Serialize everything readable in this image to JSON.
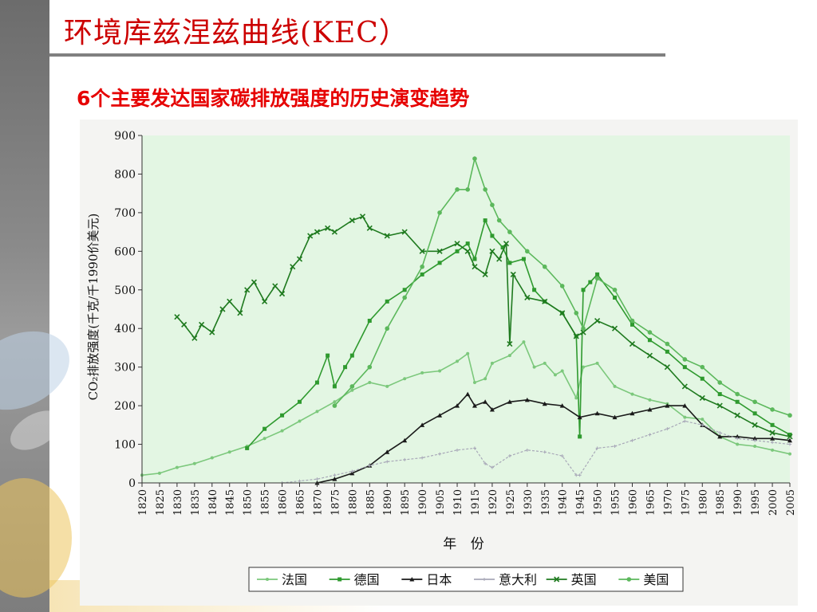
{
  "slide": {
    "title": "环境库兹涅兹曲线(KEC）",
    "subtitle": "6个主要发达国家碳排放强度的历史演变趋势"
  },
  "chart_data": {
    "type": "line",
    "xlabel": "年 份",
    "ylabel": "CO₂排放强度(千克/千1990价美元)",
    "xlim": [
      1820,
      2005
    ],
    "ylim": [
      0,
      900
    ],
    "x_ticks": [
      1820,
      1825,
      1830,
      1835,
      1840,
      1845,
      1850,
      1855,
      1860,
      1865,
      1870,
      1875,
      1880,
      1885,
      1890,
      1895,
      1900,
      1905,
      1910,
      1915,
      1920,
      1925,
      1930,
      1935,
      1940,
      1945,
      1950,
      1955,
      1960,
      1965,
      1970,
      1975,
      1980,
      1985,
      1990,
      1995,
      2000,
      2005
    ],
    "y_ticks": [
      0,
      100,
      200,
      300,
      400,
      500,
      600,
      700,
      800,
      900
    ],
    "plot_background": "#e3f6e3",
    "grid": false,
    "legend_position": "bottom",
    "series": [
      {
        "name": "法国",
        "color": "#7cc87c",
        "marker": "circle-small",
        "x": [
          1820,
          1825,
          1830,
          1835,
          1840,
          1845,
          1850,
          1855,
          1860,
          1865,
          1870,
          1875,
          1880,
          1885,
          1890,
          1895,
          1900,
          1905,
          1910,
          1913,
          1915,
          1918,
          1920,
          1925,
          1929,
          1932,
          1935,
          1938,
          1940,
          1944,
          1946,
          1950,
          1955,
          1960,
          1965,
          1970,
          1975,
          1980,
          1985,
          1990,
          1995,
          2000,
          2005
        ],
        "y": [
          20,
          25,
          40,
          50,
          65,
          80,
          95,
          115,
          135,
          160,
          185,
          210,
          240,
          260,
          250,
          270,
          285,
          290,
          315,
          335,
          260,
          270,
          310,
          330,
          365,
          300,
          310,
          280,
          290,
          220,
          300,
          310,
          250,
          230,
          215,
          205,
          170,
          165,
          120,
          100,
          95,
          85,
          75
        ]
      },
      {
        "name": "德国",
        "color": "#2f9a2f",
        "marker": "square",
        "x": [
          1850,
          1855,
          1860,
          1865,
          1870,
          1873,
          1875,
          1878,
          1880,
          1885,
          1890,
          1895,
          1900,
          1905,
          1910,
          1913,
          1915,
          1918,
          1920,
          1923,
          1925,
          1929,
          1932,
          1935,
          1940,
          1944,
          1945,
          1946,
          1948,
          1950,
          1955,
          1960,
          1965,
          1970,
          1975,
          1980,
          1985,
          1990,
          1995,
          2000,
          2005
        ],
        "y": [
          90,
          140,
          175,
          210,
          260,
          330,
          250,
          300,
          330,
          420,
          470,
          500,
          540,
          570,
          600,
          620,
          580,
          680,
          640,
          610,
          570,
          580,
          500,
          470,
          440,
          380,
          120,
          500,
          520,
          540,
          480,
          410,
          370,
          340,
          300,
          270,
          230,
          210,
          180,
          150,
          125
        ]
      },
      {
        "name": "日本",
        "color": "#1a1a1a",
        "marker": "triangle",
        "x": [
          1870,
          1875,
          1880,
          1885,
          1890,
          1895,
          1900,
          1905,
          1910,
          1913,
          1915,
          1918,
          1920,
          1925,
          1930,
          1935,
          1940,
          1945,
          1950,
          1955,
          1960,
          1965,
          1970,
          1975,
          1980,
          1985,
          1990,
          1995,
          2000,
          2005
        ],
        "y": [
          0,
          10,
          25,
          45,
          80,
          110,
          150,
          175,
          200,
          230,
          200,
          210,
          190,
          210,
          215,
          205,
          200,
          170,
          180,
          170,
          180,
          190,
          200,
          200,
          150,
          120,
          120,
          115,
          115,
          110
        ]
      },
      {
        "name": "意大利",
        "color": "#a8a8b8",
        "marker": "cross-faint",
        "x": [
          1860,
          1865,
          1870,
          1875,
          1880,
          1885,
          1890,
          1895,
          1900,
          1905,
          1910,
          1915,
          1918,
          1920,
          1925,
          1930,
          1935,
          1940,
          1944,
          1945,
          1950,
          1955,
          1960,
          1965,
          1970,
          1975,
          1980,
          1985,
          1990,
          1995,
          2000,
          2005
        ],
        "y": [
          0,
          5,
          10,
          20,
          30,
          45,
          55,
          60,
          65,
          75,
          85,
          90,
          50,
          40,
          70,
          85,
          80,
          70,
          20,
          20,
          90,
          95,
          110,
          125,
          140,
          160,
          150,
          130,
          115,
          110,
          105,
          100
        ]
      },
      {
        "name": "英国",
        "color": "#1f7a1f",
        "marker": "x",
        "x": [
          1830,
          1832,
          1835,
          1837,
          1840,
          1843,
          1845,
          1848,
          1850,
          1852,
          1855,
          1858,
          1860,
          1863,
          1865,
          1868,
          1870,
          1873,
          1875,
          1880,
          1883,
          1885,
          1890,
          1895,
          1900,
          1905,
          1910,
          1913,
          1915,
          1918,
          1920,
          1922,
          1924,
          1925,
          1926,
          1930,
          1935,
          1940,
          1944,
          1946,
          1950,
          1955,
          1960,
          1965,
          1970,
          1975,
          1980,
          1985,
          1990,
          1995,
          2000,
          2005
        ],
        "y": [
          430,
          410,
          375,
          410,
          390,
          450,
          470,
          440,
          500,
          520,
          470,
          510,
          490,
          560,
          580,
          640,
          650,
          660,
          650,
          680,
          690,
          660,
          640,
          650,
          600,
          600,
          620,
          600,
          560,
          540,
          600,
          580,
          620,
          360,
          540,
          480,
          470,
          440,
          380,
          390,
          420,
          400,
          360,
          330,
          300,
          250,
          220,
          200,
          175,
          150,
          130,
          120
        ]
      },
      {
        "name": "美国",
        "color": "#5cb85c",
        "marker": "circle",
        "x": [
          1875,
          1880,
          1885,
          1890,
          1895,
          1900,
          1905,
          1910,
          1913,
          1915,
          1918,
          1920,
          1922,
          1925,
          1930,
          1935,
          1940,
          1944,
          1946,
          1950,
          1955,
          1960,
          1965,
          1970,
          1975,
          1980,
          1985,
          1990,
          1995,
          2000,
          2005
        ],
        "y": [
          200,
          250,
          300,
          400,
          480,
          560,
          700,
          760,
          760,
          840,
          760,
          720,
          680,
          650,
          600,
          560,
          510,
          440,
          400,
          530,
          500,
          420,
          390,
          360,
          320,
          300,
          260,
          230,
          210,
          190,
          175
        ]
      }
    ]
  }
}
